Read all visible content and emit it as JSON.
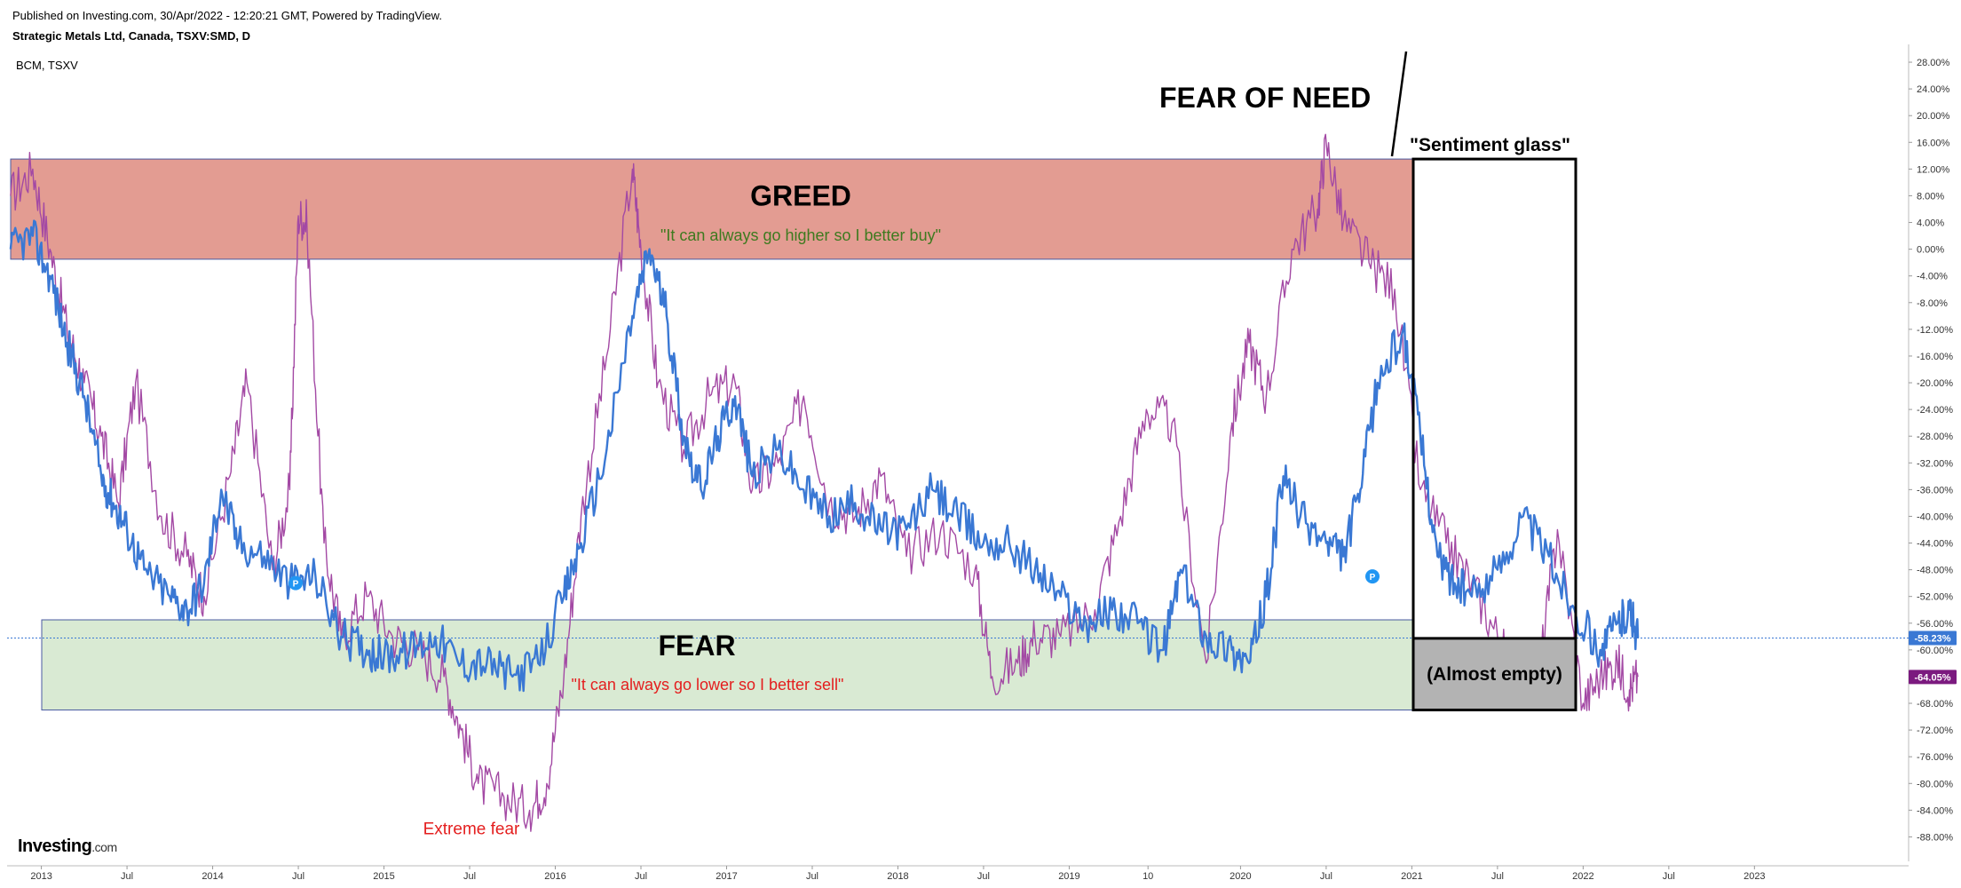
{
  "header": {
    "published": "Published on Investing.com, 30/Apr/2022 - 12:20:21 GMT, Powered by TradingView.",
    "symbol": "Strategic Metals Ltd, Canada, TSXV:SMD, D",
    "compare": "BCM, TSXV"
  },
  "brand": {
    "name": "Investing",
    "domain": ".com"
  },
  "colors": {
    "primary_series": "#3a78d4",
    "compare_series": "#a349a4",
    "greed_zone": "#e39c92",
    "fear_zone": "#d9ead3",
    "greed_quote": "#3e7a1f",
    "fear_quote": "#e41e1e",
    "extreme_fear": "#e41e1e",
    "glass_fill": "#b3b3b3",
    "axis_text": "#333333",
    "label_primary_bg": "#3a78d4",
    "label_compare_bg": "#7b1a7f"
  },
  "annotations": {
    "greed": {
      "title": "GREED",
      "quote": "\"It can always go higher so I better buy\""
    },
    "fear": {
      "title": "FEAR",
      "quote": "\"It can always go lower so I better sell\""
    },
    "extreme_fear": "Extreme fear",
    "fear_of_need": "FEAR OF NEED",
    "sentiment_glass": "\"Sentiment glass\"",
    "glass_level": "(Almost empty)"
  },
  "chart_data": {
    "type": "line",
    "x_ticks": [
      "2013",
      "Jul",
      "2014",
      "Jul",
      "2015",
      "Jul",
      "2016",
      "Jul",
      "2017",
      "Jul",
      "2018",
      "Jul",
      "2019",
      "10",
      "2020",
      "Jul",
      "2021",
      "Jul",
      "2022",
      "Jul",
      "2023"
    ],
    "y_ticks": [
      "28.00%",
      "24.00%",
      "20.00%",
      "16.00%",
      "12.00%",
      "8.00%",
      "4.00%",
      "0.00%",
      "-4.00%",
      "-8.00%",
      "-12.00%",
      "-16.00%",
      "-20.00%",
      "-24.00%",
      "-28.00%",
      "-32.00%",
      "-36.00%",
      "-40.00%",
      "-44.00%",
      "-48.00%",
      "-52.00%",
      "-56.00%",
      "-60.00%",
      "-64.00%",
      "-68.00%",
      "-72.00%",
      "-76.00%",
      "-80.00%",
      "-84.00%",
      "-88.00%"
    ],
    "ylim": [
      -91,
      30
    ],
    "x_range": [
      2012.8,
      2023.9
    ],
    "series": [
      {
        "name": "Strategic Metals Ltd, TSXV:SMD",
        "last_value_label": "-58.23%",
        "x": [
          2012.82,
          2012.95,
          2013.05,
          2013.15,
          2013.25,
          2013.35,
          2013.42,
          2013.5,
          2013.6,
          2013.75,
          2013.85,
          2013.95,
          2014.05,
          2014.15,
          2014.3,
          2014.45,
          2014.6,
          2014.75,
          2014.9,
          2015.0,
          2015.15,
          2015.3,
          2015.45,
          2015.6,
          2015.75,
          2015.9,
          2016.05,
          2016.15,
          2016.3,
          2016.45,
          2016.55,
          2016.65,
          2016.75,
          2016.85,
          2016.95,
          2017.05,
          2017.15,
          2017.3,
          2017.45,
          2017.6,
          2017.75,
          2017.9,
          2018.05,
          2018.2,
          2018.35,
          2018.5,
          2018.65,
          2018.8,
          2018.95,
          2019.1,
          2019.25,
          2019.4,
          2019.55,
          2019.65,
          2019.8,
          2019.95,
          2020.05,
          2020.15,
          2020.25,
          2020.35,
          2020.5,
          2020.6,
          2020.7,
          2020.8,
          2020.95,
          2021.05,
          2021.15,
          2021.25,
          2021.35,
          2021.5,
          2021.65,
          2021.8,
          2021.95,
          2022.1,
          2022.2,
          2022.27,
          2022.32
        ],
        "y": [
          0,
          2,
          -4,
          -14,
          -22,
          -34,
          -38,
          -42,
          -48,
          -52,
          -54,
          -50,
          -36,
          -44,
          -46,
          -50,
          -49,
          -58,
          -60,
          -61,
          -60,
          -58,
          -62,
          -62,
          -64,
          -62,
          -52,
          -44,
          -30,
          -10,
          0,
          -10,
          -28,
          -36,
          -28,
          -22,
          -34,
          -30,
          -36,
          -40,
          -38,
          -42,
          -42,
          -36,
          -40,
          -44,
          -44,
          -48,
          -52,
          -56,
          -54,
          -56,
          -60,
          -48,
          -58,
          -60,
          -62,
          -52,
          -34,
          -40,
          -44,
          -46,
          -36,
          -20,
          -12,
          -28,
          -46,
          -50,
          -52,
          -48,
          -40,
          -46,
          -54,
          -60,
          -56,
          -54,
          -58.23
        ]
      },
      {
        "name": "BCM, TSXV",
        "last_value_label": "-64.05%",
        "x": [
          2012.82,
          2012.95,
          2013.05,
          2013.15,
          2013.25,
          2013.35,
          2013.45,
          2013.55,
          2013.7,
          2013.85,
          2013.95,
          2014.1,
          2014.2,
          2014.35,
          2014.45,
          2014.5,
          2014.55,
          2014.65,
          2014.75,
          2014.9,
          2015.05,
          2015.2,
          2015.35,
          2015.45,
          2015.55,
          2015.7,
          2015.85,
          2015.95,
          2016.05,
          2016.15,
          2016.3,
          2016.45,
          2016.5,
          2016.6,
          2016.75,
          2016.9,
          2017.05,
          2017.15,
          2017.3,
          2017.45,
          2017.6,
          2017.75,
          2017.9,
          2018.05,
          2018.25,
          2018.45,
          2018.55,
          2018.7,
          2018.8,
          2018.95,
          2019.15,
          2019.3,
          2019.45,
          2019.6,
          2019.8,
          2019.95,
          2020.05,
          2020.15,
          2020.3,
          2020.45,
          2020.5,
          2020.6,
          2020.75,
          2020.9,
          2021.05,
          2021.2,
          2021.35,
          2021.5,
          2021.6,
          2021.75,
          2021.85,
          2022.0,
          2022.1,
          2022.2,
          2022.27,
          2022.32
        ],
        "y": [
          8,
          12,
          0,
          -12,
          -20,
          -28,
          -38,
          -20,
          -40,
          -46,
          -52,
          -34,
          -20,
          -48,
          -36,
          5,
          4,
          -44,
          -58,
          -52,
          -58,
          -60,
          -64,
          -72,
          -80,
          -82,
          -84,
          -80,
          -64,
          -40,
          -16,
          12,
          0,
          -20,
          -30,
          -22,
          -20,
          -36,
          -32,
          -22,
          -38,
          -40,
          -34,
          -46,
          -42,
          -48,
          -64,
          -62,
          -58,
          -58,
          -54,
          -40,
          -24,
          -26,
          -62,
          -26,
          -14,
          -22,
          0,
          6,
          16,
          4,
          -2,
          -6,
          -36,
          -44,
          -50,
          -58,
          -64,
          -62,
          -42,
          -68,
          -64,
          -62,
          -66,
          -64.05
        ]
      }
    ],
    "zones": [
      {
        "name": "GREED",
        "y_range": [
          -1.5,
          13.5
        ]
      },
      {
        "name": "FEAR",
        "y_range": [
          -69,
          -55.5
        ]
      }
    ],
    "gauge": {
      "label": "\"Sentiment glass\"",
      "fill_fraction": 0.13
    }
  }
}
